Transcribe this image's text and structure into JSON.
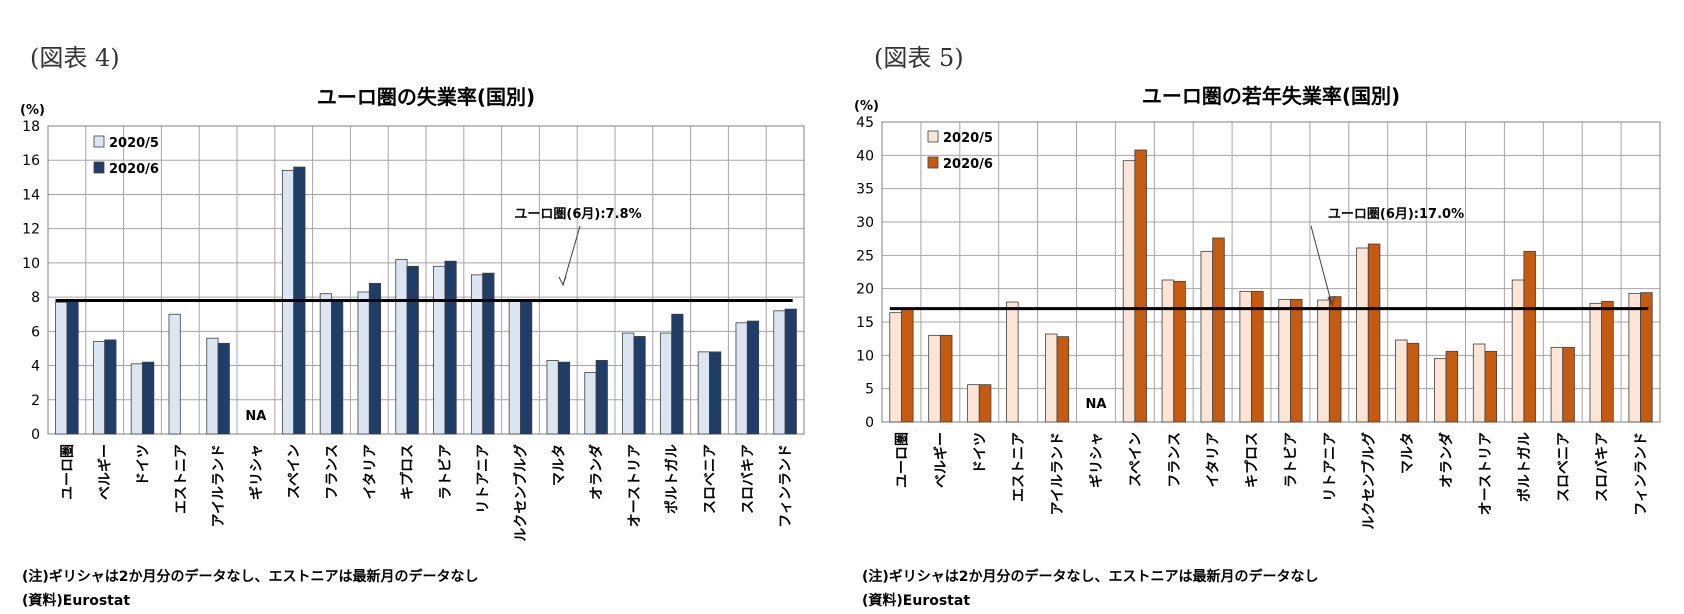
{
  "left": {
    "figure_label": "(図表 4)",
    "footnote": "(注)ギリシャは2か月分のデータなし、エストニアは最新月のデータなし",
    "source": "(資料)Eurostat",
    "chart_data": {
      "type": "bar",
      "title": "ユーロ圏の失業率(国別)",
      "ylabel": "(%)",
      "ylim": [
        0,
        18
      ],
      "yticks": [
        0,
        2,
        4,
        6,
        8,
        10,
        12,
        14,
        16,
        18
      ],
      "grid": true,
      "legend_position": "top-left",
      "categories": [
        "ユーロ圏",
        "ベルギー",
        "ドイツ",
        "エストニア",
        "アイルランド",
        "ギリシャ",
        "スペイン",
        "フランス",
        "イタリア",
        "キプロス",
        "ラトビア",
        "リトアニア",
        "ルクセンブルグ",
        "マルタ",
        "オランダ",
        "オーストリア",
        "ポルトガル",
        "スロベニア",
        "スロバキア",
        "フィンランド"
      ],
      "series": [
        {
          "name": "2020/5",
          "color": "#dce6f2",
          "values": [
            7.7,
            5.4,
            4.1,
            7.0,
            5.6,
            null,
            15.4,
            8.2,
            8.3,
            10.2,
            9.8,
            9.3,
            7.8,
            4.3,
            3.6,
            5.9,
            5.9,
            4.8,
            6.5,
            7.2
          ]
        },
        {
          "name": "2020/6",
          "color": "#1f3d66",
          "values": [
            7.8,
            5.5,
            4.2,
            null,
            5.3,
            null,
            15.6,
            7.8,
            8.8,
            9.8,
            10.1,
            9.4,
            7.8,
            4.2,
            4.3,
            5.7,
            7.0,
            4.8,
            6.6,
            7.3
          ]
        }
      ],
      "reference_line": {
        "value": 7.8,
        "label": "ユーロ圏(6月):7.8%"
      },
      "na_label": {
        "category": "ギリシャ",
        "text": "NA"
      }
    }
  },
  "right": {
    "figure_label": "(図表 5)",
    "footnote": "(注)ギリシャは2か月分のデータなし、エストニアは最新月のデータなし",
    "source": "(資料)Eurostat",
    "chart_data": {
      "type": "bar",
      "title": "ユーロ圏の若年失業率(国別)",
      "ylabel": "(%)",
      "ylim": [
        0,
        45
      ],
      "yticks": [
        0,
        5,
        10,
        15,
        20,
        25,
        30,
        35,
        40,
        45
      ],
      "grid": true,
      "legend_position": "top-left",
      "categories": [
        "ユーロ圏",
        "ベルギー",
        "ドイツ",
        "エストニア",
        "アイルランド",
        "ギリシャ",
        "スペイン",
        "フランス",
        "イタリア",
        "キプロス",
        "ラトビア",
        "リトアニア",
        "ルクセンブルグ",
        "マルタ",
        "オランダ",
        "オーストリア",
        "ポルトガル",
        "スロベニア",
        "スロバキア",
        "フィンランド"
      ],
      "series": [
        {
          "name": "2020/5",
          "color": "#fbe5d6",
          "values": [
            16.4,
            13.0,
            5.6,
            18.0,
            13.2,
            null,
            39.2,
            21.3,
            25.6,
            19.6,
            18.4,
            18.3,
            26.1,
            12.3,
            9.5,
            11.7,
            21.3,
            11.2,
            17.8,
            19.3
          ]
        },
        {
          "name": "2020/6",
          "color": "#c55a11",
          "values": [
            17.0,
            13.0,
            5.6,
            null,
            12.8,
            null,
            40.8,
            21.1,
            27.6,
            19.6,
            18.4,
            18.8,
            26.7,
            11.8,
            10.6,
            10.6,
            25.6,
            11.2,
            18.1,
            19.4
          ]
        }
      ],
      "reference_line": {
        "value": 17.0,
        "label": "ユーロ圏(6月):17.0%"
      },
      "na_label": {
        "category": "ギリシャ",
        "text": "NA"
      }
    }
  }
}
